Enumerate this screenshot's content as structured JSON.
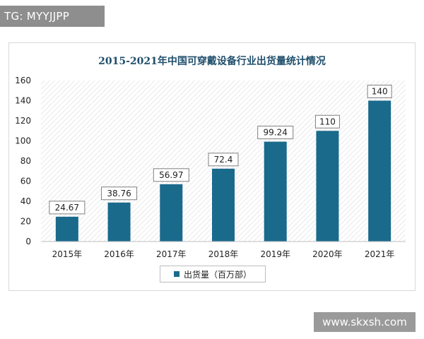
{
  "watermarks": {
    "top": "TG: MYYJJPP",
    "bottom": "www.skxsh.com"
  },
  "colors": {
    "bar": "#1a6a8c",
    "title": "#1f4e6b"
  },
  "chart_data": {
    "type": "bar",
    "title": "2015-2021年中国可穿戴设备行业出货量统计情况",
    "xlabel": "",
    "ylabel": "",
    "categories": [
      "2015年",
      "2016年",
      "2017年",
      "2018年",
      "2019年",
      "2020年",
      "2021年"
    ],
    "series": [
      {
        "name": "出货量（百万部）",
        "values": [
          24.67,
          38.76,
          56.97,
          72.4,
          99.24,
          110,
          140
        ]
      }
    ],
    "value_labels": [
      "24.67",
      "38.76",
      "56.97",
      "72.4",
      "99.24",
      "110",
      "140"
    ],
    "ylim": [
      0,
      160
    ],
    "yticks": [
      "0",
      "20",
      "40",
      "60",
      "80",
      "100",
      "120",
      "140",
      "160"
    ],
    "grid": false,
    "background_pattern": "diagonal-hatch",
    "legend_position": "bottom"
  }
}
